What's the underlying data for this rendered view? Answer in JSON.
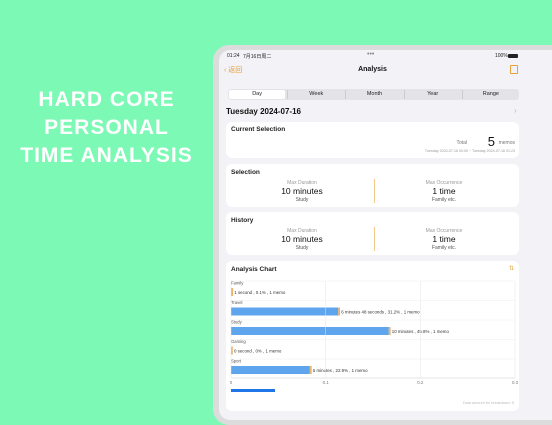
{
  "promo": {
    "lines": [
      "HARD CORE",
      "PERSONAL",
      "TIME ANALYSIS"
    ]
  },
  "status": {
    "time": "01:24",
    "date": "7月16日周二",
    "battery": "100%"
  },
  "nav": {
    "back": "返回",
    "title": "Analysis"
  },
  "tabs": {
    "items": [
      "Day",
      "Week",
      "Month",
      "Year",
      "Range"
    ],
    "selected": 0
  },
  "date": "Tuesday 2024-07-16",
  "current": {
    "title": "Current Selection",
    "total_label": "Total",
    "total": 5,
    "unit": "memos",
    "range": "Tuesday 2024-07-16 00:00 ~ Tuesday 2024-07-16 01:23"
  },
  "selection": {
    "title": "Selection",
    "max_duration_label": "Max Duration",
    "max_duration": "10 minutes",
    "max_duration_sub": "Study",
    "max_occurrence_label": "Max Occurrence",
    "max_occurrence": "1 time",
    "max_occurrence_sub": "Family etc."
  },
  "history": {
    "title": "History",
    "max_duration_label": "Max Duration",
    "max_duration": "10 minutes",
    "max_duration_sub": "Study",
    "max_occurrence_label": "Max Occurrence",
    "max_occurrence": "1 time",
    "max_occurrence_sub": "Family etc."
  },
  "chart": {
    "title": "Analysis Chart",
    "categories": [
      "Family",
      "Travel",
      "Study",
      "Gaming",
      "Sport"
    ],
    "values": [
      0.0003,
      0.1133,
      0.1667,
      0,
      0.0833
    ],
    "value_labels": [
      "1 second , 0.1% , 1 memo",
      "6 minutes 48 seconds , 31.2% , 1 memo",
      "10 minutes , 45.8% , 1 memo",
      "0 second , 0% , 1 memo",
      "5 minutes , 22.9% , 1 memo"
    ],
    "color": "#5fa5ee",
    "cap_color": "#e9b46a",
    "xlim": [
      0,
      0.3
    ],
    "xticks": [
      0,
      0.1,
      0.2,
      0.3
    ],
    "footer": "Data amount for breakdown: 5"
  }
}
